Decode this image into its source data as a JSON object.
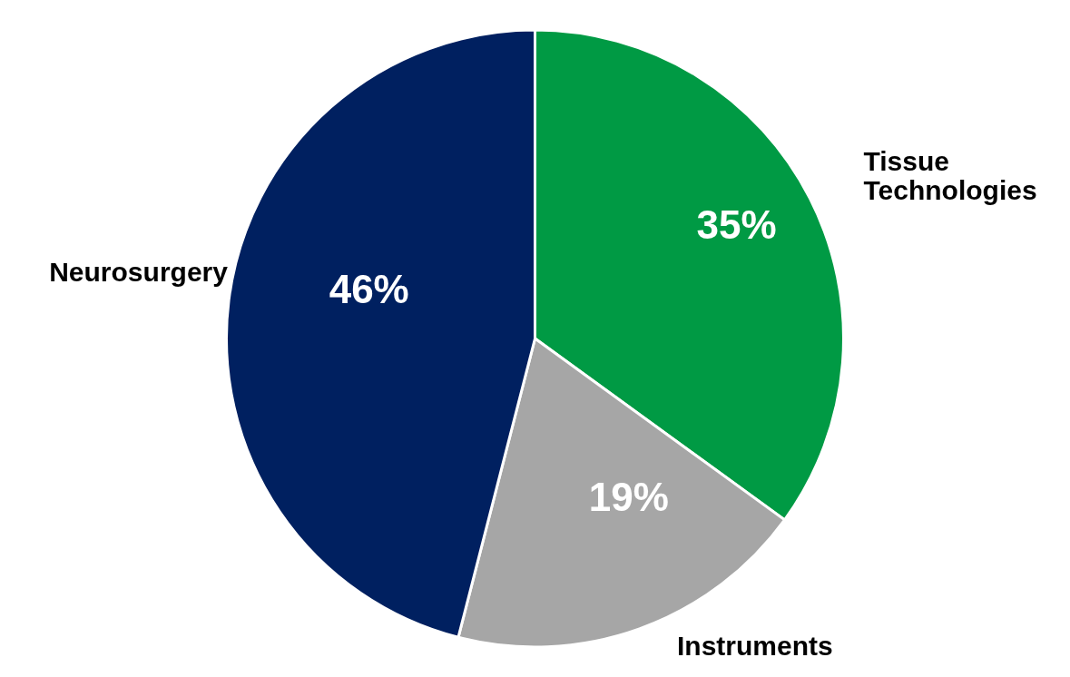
{
  "chart_data": {
    "type": "pie",
    "categories": [
      "Tissue Technologies",
      "Instruments",
      "Neurosurgery"
    ],
    "values": [
      35,
      19,
      46
    ],
    "colors": [
      "#009a44",
      "#a6a6a6",
      "#002060"
    ],
    "value_labels": [
      "35%",
      "19%",
      "46%"
    ],
    "legend": false
  }
}
